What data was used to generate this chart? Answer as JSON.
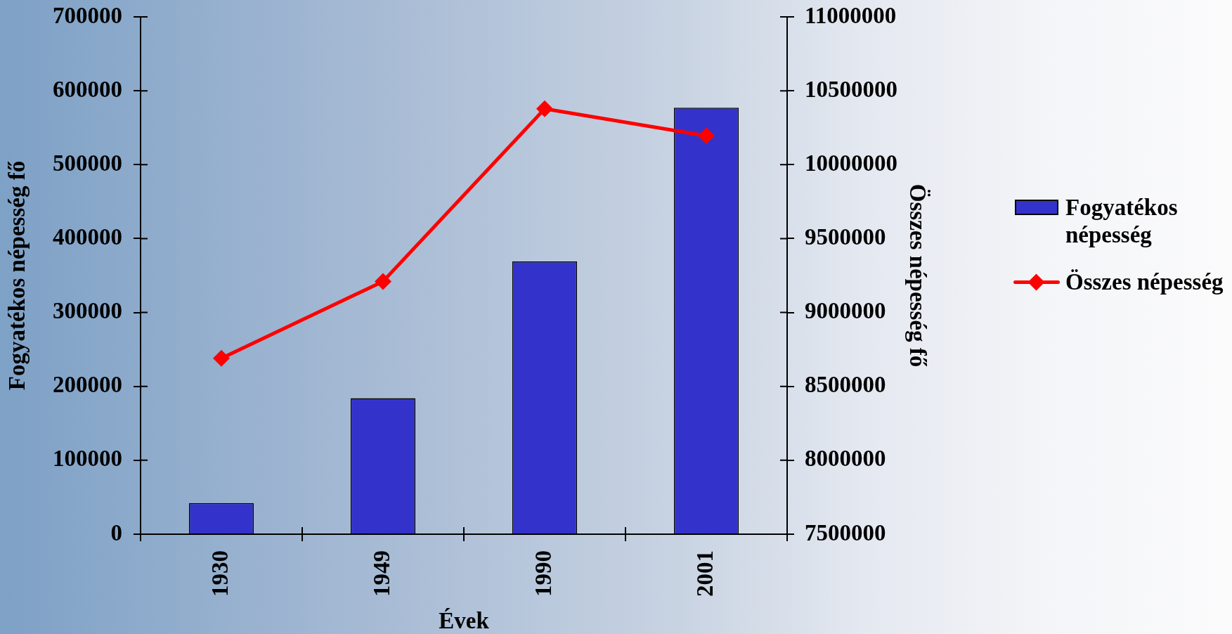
{
  "chart_data": {
    "type": "bar",
    "xlabel": "Évek",
    "ylabel": "Fogyatékos népesség fő",
    "y2label": "Összes népesség fő",
    "categories": [
      "1930",
      "1949",
      "1990",
      "2001"
    ],
    "series": [
      {
        "name": "Fogyatékos népesség",
        "color": "#3333cc",
        "values": [
          42000,
          184000,
          369000,
          577000
        ]
      },
      {
        "name": "Összes népesség",
        "type": "line",
        "axis": "y2",
        "color": "#ff0000",
        "values": [
          8690000,
          9210000,
          10378000,
          10195000
        ]
      }
    ],
    "ylim": [
      0,
      700000
    ],
    "yticks": [
      0,
      100000,
      200000,
      300000,
      400000,
      500000,
      600000,
      700000
    ],
    "y2lim": [
      7500000,
      11000000
    ],
    "y2ticks": [
      7500000,
      8000000,
      8500000,
      9000000,
      9500000,
      10000000,
      10500000,
      11000000
    ],
    "marker": "diamond",
    "line_style": "solid",
    "legend": "right"
  }
}
